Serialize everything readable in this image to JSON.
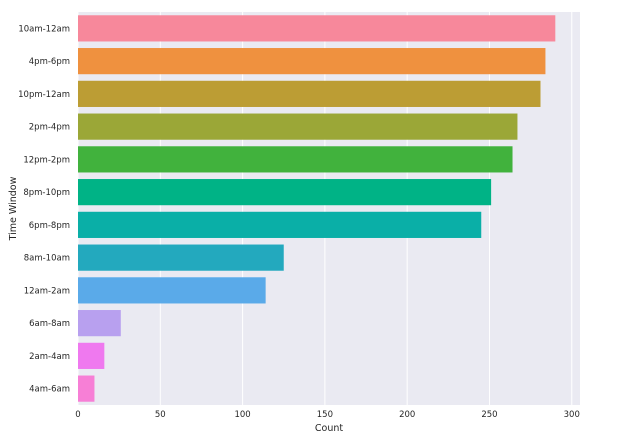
{
  "chart_data": {
    "type": "bar",
    "orientation": "horizontal",
    "title": "",
    "xlabel": "Count",
    "ylabel": "Time Window",
    "categories": [
      "10am-12am",
      "4pm-6pm",
      "10pm-12am",
      "2pm-4pm",
      "12pm-2pm",
      "8pm-10pm",
      "6pm-8pm",
      "8am-10am",
      "12am-2am",
      "6am-8am",
      "2am-4am",
      "4am-6am"
    ],
    "values": [
      290,
      284,
      281,
      267,
      264,
      251,
      245,
      125,
      114,
      26,
      16,
      10
    ],
    "colors": [
      "#f7889b",
      "#ef913f",
      "#bc9d34",
      "#9ba737",
      "#41b23d",
      "#00b386",
      "#0aafa7",
      "#23a9be",
      "#5aaae9",
      "#b8a0ef",
      "#ef79ef",
      "#f77fd6"
    ],
    "xlim": [
      0,
      305
    ],
    "xticks": [
      0,
      50,
      100,
      150,
      200,
      250,
      300
    ],
    "grid": true,
    "legend": "none",
    "style": {
      "plot_background": "#eaeaf2",
      "grid_color": "#ffffff"
    }
  }
}
